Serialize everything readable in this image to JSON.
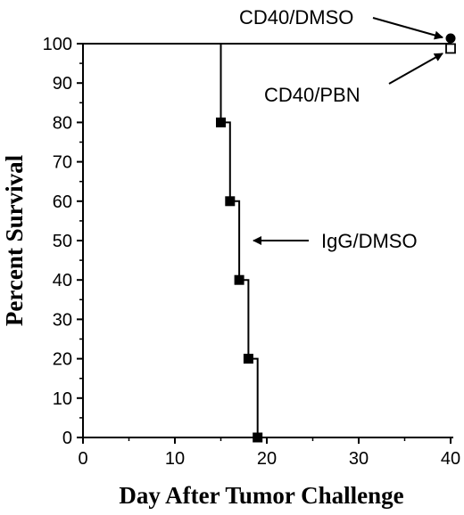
{
  "chart_data": {
    "type": "line",
    "step": true,
    "xlabel": "Day After Tumor Challenge",
    "ylabel": "Percent Survival",
    "xlim": [
      0,
      40
    ],
    "ylim": [
      0,
      100
    ],
    "xticks": [
      0,
      10,
      20,
      30,
      40
    ],
    "yticks": [
      0,
      10,
      20,
      30,
      40,
      50,
      60,
      70,
      80,
      90,
      100
    ],
    "grid": false,
    "series": [
      {
        "name": "CD40/DMSO",
        "marker": "filled-circle",
        "x": [
          0,
          40
        ],
        "y": [
          100,
          100
        ],
        "marked_points": [
          [
            40,
            100
          ]
        ]
      },
      {
        "name": "CD40/PBN",
        "marker": "open-square",
        "x": [
          0,
          40
        ],
        "y": [
          100,
          100
        ],
        "marked_points": [
          [
            40,
            99
          ]
        ]
      },
      {
        "name": "IgG/DMSO",
        "marker": "filled-square",
        "x": [
          0,
          15,
          15,
          16,
          16,
          17,
          17,
          18,
          18,
          19,
          19
        ],
        "y": [
          100,
          100,
          80,
          80,
          60,
          60,
          40,
          40,
          20,
          20,
          0
        ],
        "marked_points": [
          [
            15,
            80
          ],
          [
            16,
            60
          ],
          [
            17,
            40
          ],
          [
            18,
            20
          ],
          [
            19,
            0
          ]
        ]
      }
    ],
    "annotations": [
      {
        "text": "CD40/DMSO",
        "series": "CD40/DMSO"
      },
      {
        "text": "CD40/PBN",
        "series": "CD40/PBN"
      },
      {
        "text": "IgG/DMSO",
        "series": "IgG/DMSO"
      }
    ]
  }
}
